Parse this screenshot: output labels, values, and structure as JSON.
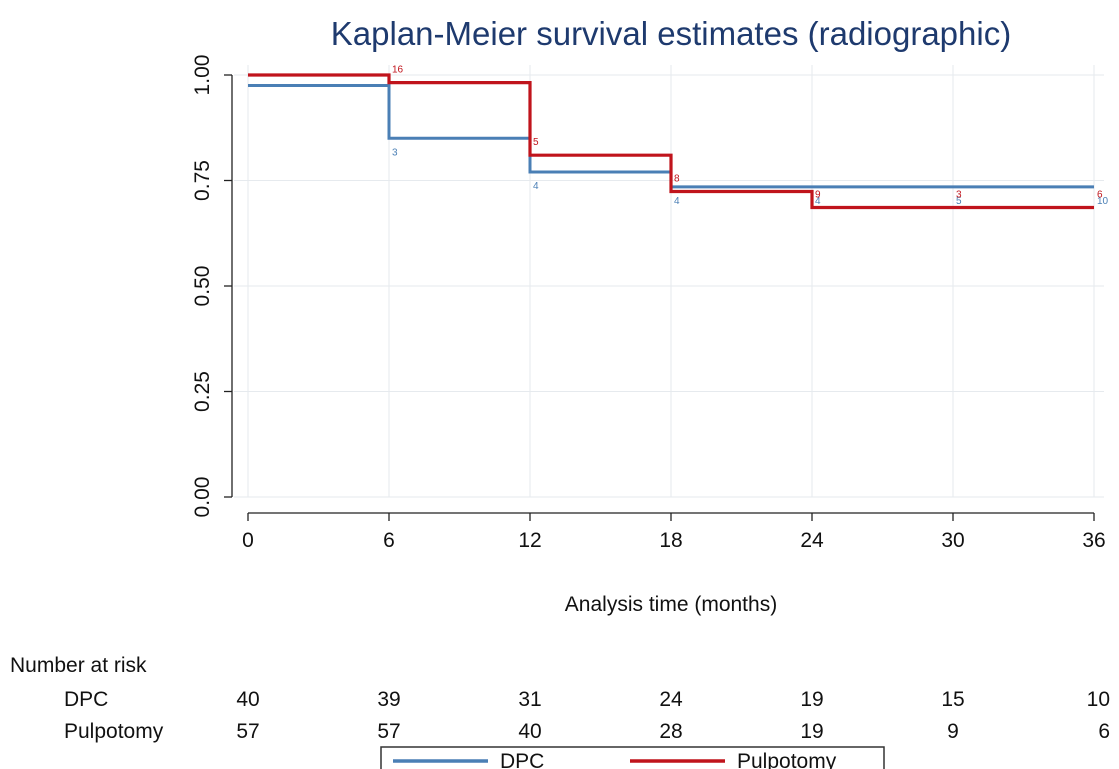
{
  "chart_data": {
    "type": "line",
    "title": "Kaplan-Meier survival estimates (radiographic)",
    "xlabel": "Analysis time (months)",
    "ylabel": "",
    "xlim": [
      0,
      36
    ],
    "ylim": [
      0,
      1
    ],
    "x_ticks": [
      0,
      6,
      12,
      18,
      24,
      30,
      36
    ],
    "x_tick_labels": [
      "0",
      "6",
      "12",
      "18",
      "24",
      "30",
      "36"
    ],
    "y_ticks": [
      0,
      0.25,
      0.5,
      0.75,
      1
    ],
    "y_tick_labels": [
      "0.00",
      "0.25",
      "0.50",
      "0.75",
      "1.00"
    ],
    "grid": true,
    "step": true,
    "series": [
      {
        "name": "DPC",
        "color": "#4a7fb5",
        "x": [
          0,
          6,
          12,
          18,
          24,
          30,
          36
        ],
        "y": [
          0.975,
          0.85,
          0.77,
          0.735,
          0.735,
          0.735,
          0.735
        ],
        "censor_labels": [
          {
            "x": 6,
            "y": 0.85,
            "text": "3"
          },
          {
            "x": 12,
            "y": 0.77,
            "text": "4"
          },
          {
            "x": 18,
            "y": 0.735,
            "text": "4"
          },
          {
            "x": 24,
            "y": 0.735,
            "text": "4"
          },
          {
            "x": 30,
            "y": 0.735,
            "text": "5"
          },
          {
            "x": 36,
            "y": 0.735,
            "text": "10"
          }
        ]
      },
      {
        "name": "Pulpotomy",
        "color": "#c0141c",
        "x": [
          0,
          6,
          12,
          18,
          24,
          30,
          36
        ],
        "y": [
          1.0,
          0.982,
          0.81,
          0.724,
          0.686,
          0.686,
          0.686
        ],
        "censor_labels": [
          {
            "x": 6,
            "y": 0.982,
            "text": "16"
          },
          {
            "x": 12,
            "y": 0.81,
            "text": "5"
          },
          {
            "x": 18,
            "y": 0.724,
            "text": "8"
          },
          {
            "x": 24,
            "y": 0.686,
            "text": "9"
          },
          {
            "x": 30,
            "y": 0.686,
            "text": "3"
          },
          {
            "x": 36,
            "y": 0.686,
            "text": "6"
          }
        ]
      }
    ],
    "number_at_risk": {
      "header": "Number at risk",
      "rows": [
        {
          "label": "DPC",
          "values": [
            "40",
            "39",
            "31",
            "24",
            "19",
            "15",
            "10"
          ]
        },
        {
          "label": "Pulpotomy",
          "values": [
            "57",
            "57",
            "40",
            "28",
            "19",
            "9",
            "6"
          ]
        }
      ]
    },
    "legend": {
      "placement": "bottom",
      "entries": [
        "DPC",
        "Pulpotomy"
      ]
    }
  }
}
